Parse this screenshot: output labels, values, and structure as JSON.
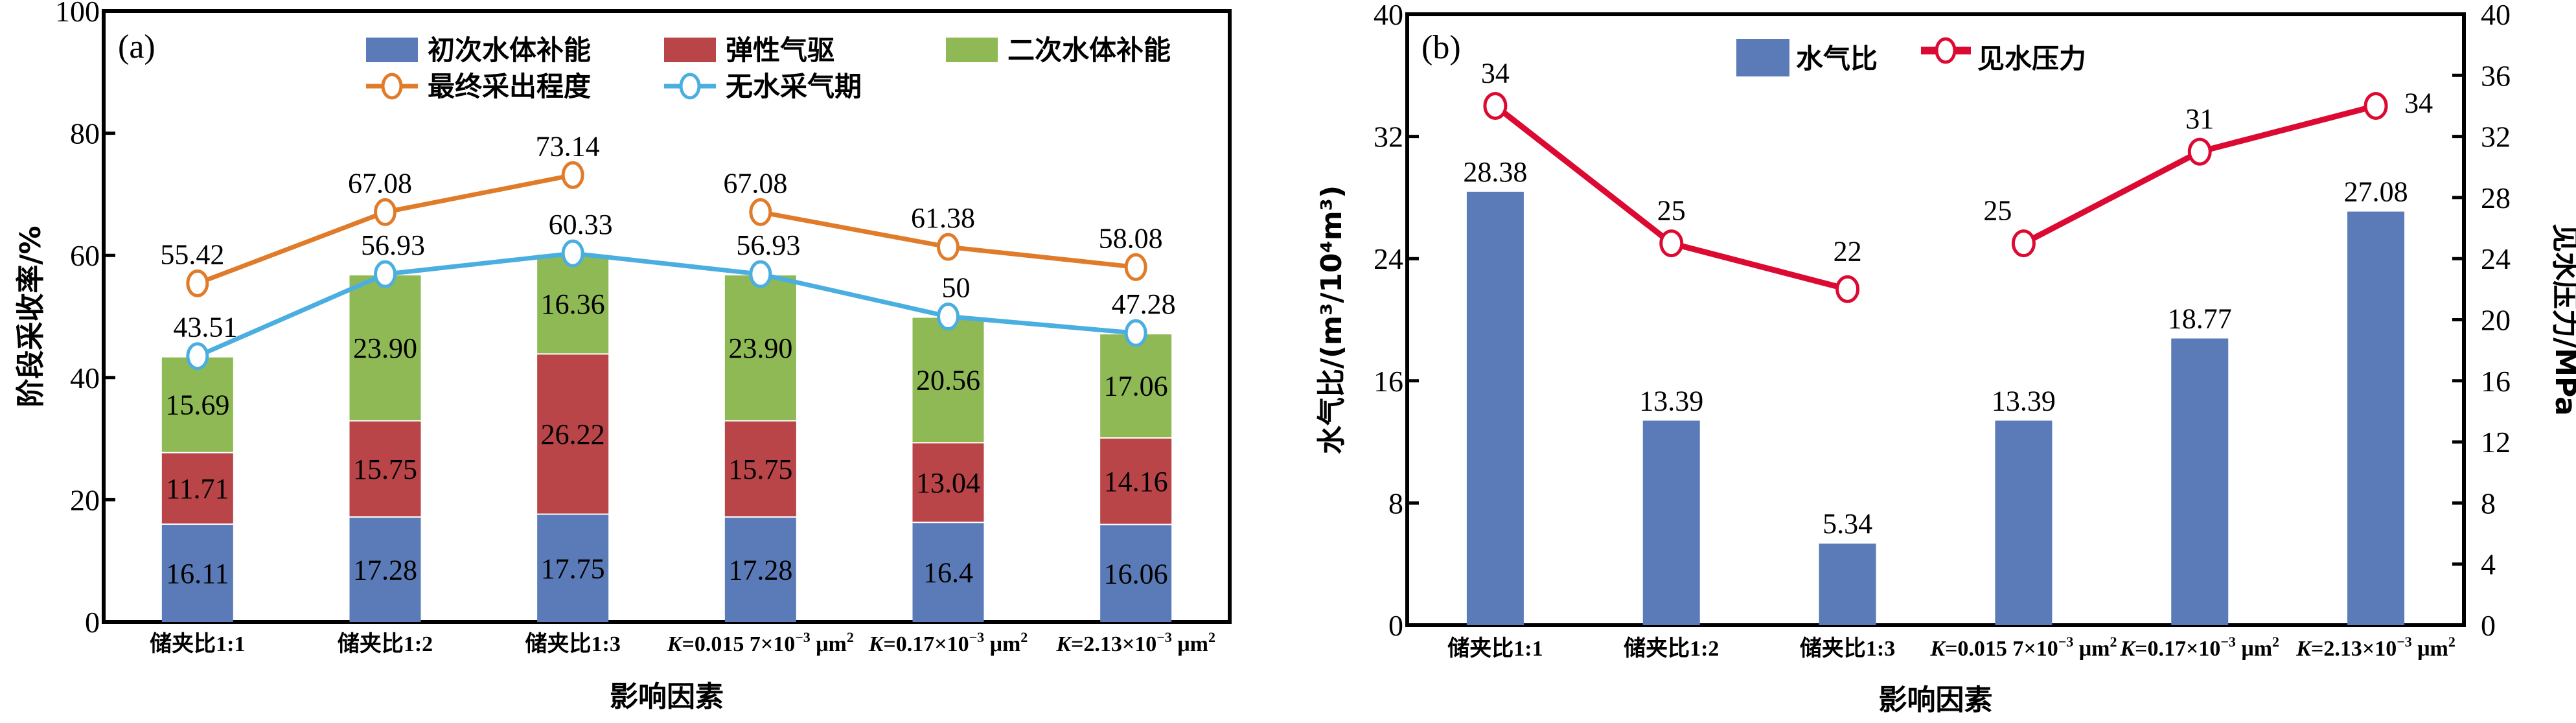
{
  "chart_data": [
    {
      "type": "bar",
      "stacked": true,
      "panel_label": "(a)",
      "xlabel": "影响因素",
      "ylabel": "阶段采收率/%",
      "ylim": [
        0,
        100
      ],
      "yticks": [
        0,
        20,
        40,
        60,
        80,
        100
      ],
      "grid": false,
      "legend_position": "top",
      "categories": [
        {
          "main": "储夹比1:1"
        },
        {
          "main": "储夹比1:2"
        },
        {
          "main": "储夹比1:3"
        },
        {
          "prefix": "K",
          "main": "=0.015 7×10",
          "sup1": "−3",
          "unit": " μm",
          "sup2": "2"
        },
        {
          "prefix": "K",
          "main": "=0.17×10",
          "sup1": "−3",
          "unit": " μm",
          "sup2": "2"
        },
        {
          "prefix": "K",
          "main": "=2.13×10",
          "sup1": "−3",
          "unit": " μm",
          "sup2": "2"
        }
      ],
      "bar_series": [
        {
          "name": "初次水体补能",
          "color": "#5b7bb8",
          "values": [
            16.11,
            17.28,
            17.75,
            17.28,
            16.4,
            16.06
          ],
          "labels": [
            "16.11",
            "17.28",
            "17.75",
            "17.28",
            "16.4",
            "16.06"
          ]
        },
        {
          "name": "弹性气驱",
          "color": "#b94548",
          "values": [
            11.71,
            15.75,
            26.22,
            15.75,
            13.04,
            14.16
          ],
          "labels": [
            "11.71",
            "15.75",
            "26.22",
            "15.75",
            "13.04",
            "14.16"
          ]
        },
        {
          "name": "二次水体补能",
          "color": "#8fb955",
          "values": [
            15.69,
            23.9,
            16.36,
            23.9,
            20.56,
            17.06
          ],
          "labels": [
            "15.69",
            "23.90",
            "16.36",
            "23.90",
            "20.56",
            "17.06"
          ]
        }
      ],
      "line_series": [
        {
          "name": "最终采出程度",
          "color": "#e07b2a",
          "values": [
            55.42,
            67.08,
            73.14,
            67.08,
            61.38,
            58.08
          ],
          "labels": [
            "55.42",
            "67.08",
            "73.14",
            "67.08",
            "61.38",
            "58.08"
          ],
          "segments": [
            [
              0,
              2
            ],
            [
              3,
              5
            ]
          ]
        },
        {
          "name": "无水采气期",
          "color": "#4aaee0",
          "values": [
            43.51,
            56.93,
            60.33,
            56.93,
            50,
            47.28
          ],
          "labels": [
            "43.51",
            "56.93",
            "60.33",
            "56.93",
            "50",
            "47.28"
          ],
          "segments": [
            [
              0,
              5
            ]
          ]
        }
      ]
    },
    {
      "type": "bar",
      "panel_label": "(b)",
      "xlabel": "影响因素",
      "ylabel": "水气比/(m³/10⁴m³)",
      "ylabel_right": "见水压力/MPa",
      "ylim": [
        0,
        40
      ],
      "yticks": [
        0,
        8,
        16,
        24,
        32,
        40
      ],
      "ylim_right": [
        0,
        40
      ],
      "yticks_right": [
        0,
        4,
        8,
        12,
        16,
        20,
        24,
        28,
        32,
        36,
        40
      ],
      "grid": false,
      "legend_position": "top-center",
      "categories": [
        {
          "main": "储夹比1:1"
        },
        {
          "main": "储夹比1:2"
        },
        {
          "main": "储夹比1:3"
        },
        {
          "prefix": "K",
          "main": "=0.015 7×10",
          "sup1": "−3",
          "unit": " μm",
          "sup2": "2"
        },
        {
          "prefix": "K",
          "main": "=0.17×10",
          "sup1": "−3",
          "unit": " μm",
          "sup2": "2"
        },
        {
          "prefix": "K",
          "main": "=2.13×10",
          "sup1": "−3",
          "unit": " μm",
          "sup2": "2"
        }
      ],
      "bar_series": [
        {
          "name": "水气比",
          "color": "#5b7bb8",
          "axis": "left",
          "values": [
            28.38,
            13.39,
            5.34,
            13.39,
            18.77,
            27.08
          ],
          "labels": [
            "28.38",
            "13.39",
            "5.34",
            "13.39",
            "18.77",
            "27.08"
          ]
        }
      ],
      "line_series": [
        {
          "name": "见水压力",
          "color": "#dc0a32",
          "axis": "right",
          "values": [
            34,
            25,
            22,
            25,
            31,
            34
          ],
          "labels": [
            "34",
            "25",
            "22",
            "25",
            "31",
            "34"
          ],
          "segments": [
            [
              0,
              2
            ],
            [
              3,
              5
            ]
          ]
        }
      ]
    }
  ]
}
